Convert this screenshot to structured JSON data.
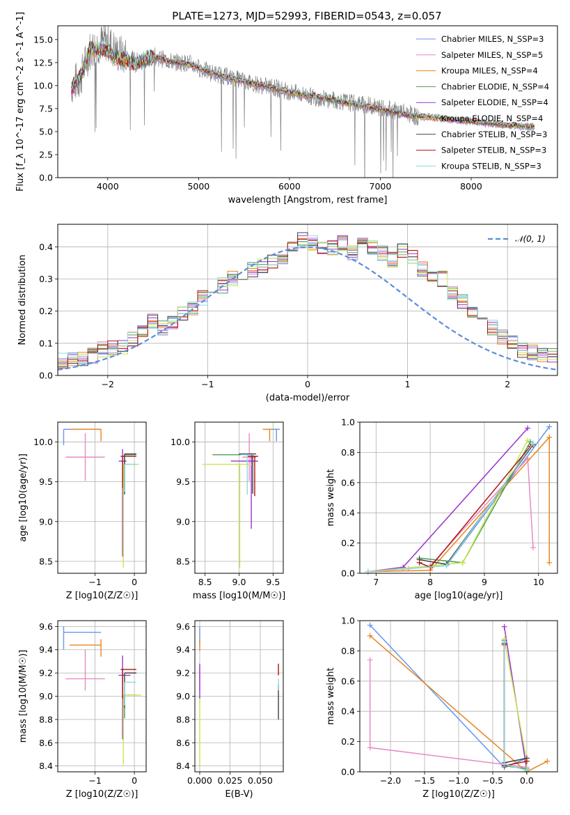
{
  "page_title": "PLATE=1273, MJD=52993, FIBERID=0543, z=0.057",
  "chart_data": [
    {
      "id": "spectrum",
      "type": "line",
      "title": "PLATE=1273, MJD=52993, FIBERID=0543, z=0.057",
      "xlabel": "wavelength [Angstrom, rest frame]",
      "ylabel": "Flux [f_λ 10^-17 erg cm^-2 s^-1 A^-1]",
      "xlim": [
        3450,
        8950
      ],
      "ylim": [
        0,
        16.5
      ],
      "xticks": [
        4000,
        5000,
        6000,
        7000,
        8000
      ],
      "yticks": [
        0.0,
        2.5,
        5.0,
        7.5,
        10.0,
        12.5,
        15.0
      ],
      "grid": false,
      "legend_position": "top-right",
      "data_spectrum": {
        "color": "#808080",
        "x": [
          3600,
          3700,
          3800,
          3900,
          4000,
          4100,
          4200,
          4300,
          4400,
          4500,
          4700,
          4900,
          5100,
          5300,
          5500,
          5700,
          5900,
          6100,
          6300,
          6500,
          6700,
          6900,
          7100,
          7300,
          7420
        ],
        "y": [
          10.0,
          10.8,
          13.8,
          14.5,
          14.8,
          13.5,
          13.2,
          12.7,
          12.8,
          13.2,
          12.6,
          12.4,
          11.5,
          11.0,
          10.5,
          10.0,
          9.6,
          9.1,
          8.7,
          8.4,
          8.1,
          7.8,
          7.4,
          7.0,
          6.5
        ]
      },
      "series": [
        {
          "name": "Chabrier MILES, N_SSP=3",
          "color": "#6495ED"
        },
        {
          "name": "Salpeter MILES, N_SSP=5",
          "color": "#E78AC3"
        },
        {
          "name": "Kroupa MILES, N_SSP=4",
          "color": "#E6851E"
        },
        {
          "name": "Chabrier ELODIE, N_SSP=4",
          "color": "#4C9A5A"
        },
        {
          "name": "Salpeter ELODIE, N_SSP=4",
          "color": "#9932CC"
        },
        {
          "name": "Kroupa ELODIE, N_SSP=4",
          "color": "#C8E64B"
        },
        {
          "name": "Chabrier STELIB, N_SSP=3",
          "color": "#404040"
        },
        {
          "name": "Salpeter STELIB, N_SSP=3",
          "color": "#B01010"
        },
        {
          "name": "Kroupa STELIB, N_SSP=3",
          "color": "#8FD8D8"
        }
      ],
      "model_x": [
        3600,
        3700,
        3800,
        3900,
        4000,
        4100,
        4200,
        4300,
        4400,
        4500,
        4700,
        4900,
        5100,
        5300,
        5500,
        5700,
        5900,
        6100,
        6300,
        6500,
        6700,
        6900,
        7100,
        7300,
        7500,
        7700,
        7900,
        8100,
        8300,
        8500,
        8700
      ],
      "model_y": [
        9.6,
        10.9,
        13.9,
        14.0,
        13.8,
        13.0,
        12.7,
        12.3,
        12.8,
        13.1,
        12.6,
        12.3,
        11.5,
        10.9,
        10.4,
        10.0,
        9.5,
        9.1,
        8.8,
        8.4,
        8.0,
        7.6,
        7.2,
        6.8,
        6.6,
        6.4,
        6.2,
        6.0,
        5.8,
        5.6,
        5.5
      ]
    },
    {
      "id": "residuals",
      "type": "step",
      "xlabel": "(data-model)/error",
      "ylabel": "Normed distribution",
      "xlim": [
        -2.5,
        2.5
      ],
      "ylim": [
        0,
        0.47
      ],
      "xticks": [
        -2,
        -1,
        0,
        1,
        2
      ],
      "yticks": [
        0.0,
        0.1,
        0.2,
        0.3,
        0.4
      ],
      "grid": true,
      "legend_position": "top-right",
      "normal_label": "𝒩(0, 1)",
      "normal_color": "#5B8BD9",
      "bin_width": 0.1,
      "bin_start": -2.5,
      "hist_base": [
        0.045,
        0.05,
        0.052,
        0.06,
        0.08,
        0.085,
        0.09,
        0.11,
        0.14,
        0.17,
        0.15,
        0.16,
        0.19,
        0.21,
        0.24,
        0.26,
        0.28,
        0.3,
        0.31,
        0.33,
        0.34,
        0.35,
        0.37,
        0.4,
        0.42,
        0.41,
        0.39,
        0.4,
        0.41,
        0.38,
        0.41,
        0.4,
        0.38,
        0.36,
        0.39,
        0.37,
        0.33,
        0.31,
        0.3,
        0.26,
        0.23,
        0.19,
        0.17,
        0.15,
        0.12,
        0.1,
        0.08,
        0.07,
        0.065,
        0.06
      ]
    },
    {
      "id": "age-vs-Z",
      "type": "errorbar",
      "xlabel": "Z [log10(Z/Z☉)]",
      "ylabel": "age  [log10(age/yr)]",
      "xlim": [
        -1.95,
        0.3
      ],
      "ylim": [
        8.35,
        10.25
      ],
      "xticks": [
        -1,
        0
      ],
      "yticks": [
        8.5,
        9.0,
        9.5,
        10.0
      ],
      "grid": true,
      "points": [
        {
          "color": "#6495ED",
          "x": -1.8,
          "y": 10.16,
          "xerr": [
            0,
            0.95
          ],
          "yerr": [
            0.2,
            0
          ]
        },
        {
          "color": "#E6851E",
          "x": -0.85,
          "y": 10.16,
          "xerr": [
            0.8,
            0
          ],
          "yerr": [
            0.15,
            0
          ]
        },
        {
          "color": "#E78AC3",
          "x": -1.25,
          "y": 9.81,
          "xerr": [
            0.5,
            0.5
          ],
          "yerr": [
            0.3,
            0.3
          ]
        },
        {
          "color": "#4C9A5A",
          "x": -0.25,
          "y": 9.84,
          "xerr": [
            0,
            0.3
          ],
          "yerr": [
            0.5,
            0
          ]
        },
        {
          "color": "#9932CC",
          "x": -0.3,
          "y": 9.76,
          "xerr": [
            0.1,
            0.1
          ],
          "yerr": [
            1.2,
            0.15
          ]
        },
        {
          "color": "#C8E64B",
          "x": -0.28,
          "y": 9.72,
          "xerr": [
            0,
            0.4
          ],
          "yerr": [
            1.3,
            0
          ]
        },
        {
          "color": "#404040",
          "x": -0.25,
          "y": 9.85,
          "xerr": [
            0,
            0.3
          ],
          "yerr": [
            0.5,
            0
          ]
        },
        {
          "color": "#B01010",
          "x": -0.3,
          "y": 9.82,
          "xerr": [
            0.05,
            0.35
          ],
          "yerr": [
            0.4,
            0
          ]
        },
        {
          "color": "#8FD8D8",
          "x": -0.25,
          "y": 9.72,
          "xerr": [
            0,
            0.3
          ],
          "yerr": [
            0.35,
            0
          ]
        }
      ]
    },
    {
      "id": "age-vs-mass",
      "type": "errorbar",
      "xlabel": "mass [log10(M/M☉)]",
      "ylabel": "",
      "xlim": [
        8.35,
        9.65
      ],
      "ylim": [
        8.35,
        10.25
      ],
      "xticks": [
        8.5,
        9.0,
        9.5
      ],
      "yticks": [
        8.5,
        9.0,
        9.5,
        10.0
      ],
      "grid": true,
      "points": [
        {
          "color": "#6495ED",
          "x": 9.55,
          "y": 10.16,
          "xerr": [
            0.1,
            0.05
          ],
          "yerr": [
            0.15,
            0
          ]
        },
        {
          "color": "#E6851E",
          "x": 9.45,
          "y": 10.16,
          "xerr": [
            0.1,
            0.05
          ],
          "yerr": [
            0.15,
            0
          ]
        },
        {
          "color": "#E78AC3",
          "x": 9.15,
          "y": 9.81,
          "xerr": [
            0.1,
            0.1
          ],
          "yerr": [
            0.3,
            0.3
          ]
        },
        {
          "color": "#4C9A5A",
          "x": 9.01,
          "y": 9.84,
          "xerr": [
            0.4,
            0.2
          ],
          "yerr": [
            0,
            0
          ]
        },
        {
          "color": "#9932CC",
          "x": 9.18,
          "y": 9.76,
          "xerr": [
            0.3,
            0.1
          ],
          "yerr": [
            0.85,
            0.1
          ]
        },
        {
          "color": "#C8E64B",
          "x": 9.01,
          "y": 9.72,
          "xerr": [
            0.55,
            0.2
          ],
          "yerr": [
            1.3,
            0
          ]
        },
        {
          "color": "#404040",
          "x": 9.2,
          "y": 9.85,
          "xerr": [
            0.2,
            0.05
          ],
          "yerr": [
            0.5,
            0
          ]
        },
        {
          "color": "#B01010",
          "x": 9.23,
          "y": 9.82,
          "xerr": [
            0.1,
            0.05
          ],
          "yerr": [
            0.5,
            0
          ]
        },
        {
          "color": "#8FD8D8",
          "x": 9.12,
          "y": 9.84,
          "xerr": [
            0.1,
            0.1
          ],
          "yerr": [
            0.5,
            0
          ]
        }
      ]
    },
    {
      "id": "massweight-vs-age",
      "type": "line",
      "xlabel": "age  [log10(age/yr)]",
      "ylabel": "mass weight",
      "xlim": [
        6.7,
        10.35
      ],
      "ylim": [
        0,
        1.0
      ],
      "xticks": [
        7,
        8,
        9,
        10
      ],
      "yticks": [
        0.0,
        0.2,
        0.4,
        0.6,
        0.8,
        1.0
      ],
      "grid": true,
      "series": [
        {
          "color": "#6495ED",
          "x": [
            6.85,
            8.3,
            10.2
          ],
          "y": [
            0.01,
            0.05,
            0.97
          ]
        },
        {
          "color": "#E78AC3",
          "x": [
            6.85,
            7.6,
            8.0,
            9.8,
            9.9
          ],
          "y": [
            0.01,
            0.03,
            0.05,
            0.76,
            0.17
          ]
        },
        {
          "color": "#E6851E",
          "x": [
            6.85,
            8.0,
            10.2,
            10.2
          ],
          "y": [
            0.01,
            0.02,
            0.9,
            0.07
          ]
        },
        {
          "color": "#4C9A5A",
          "x": [
            7.8,
            8.6,
            9.85
          ],
          "y": [
            0.1,
            0.07,
            0.87
          ]
        },
        {
          "color": "#9932CC",
          "x": [
            6.85,
            7.5,
            9.8
          ],
          "y": [
            0.01,
            0.04,
            0.96
          ]
        },
        {
          "color": "#C8E64B",
          "x": [
            6.85,
            8.6,
            9.8
          ],
          "y": [
            0.01,
            0.07,
            0.88
          ]
        },
        {
          "color": "#404040",
          "x": [
            7.8,
            8.3,
            9.9
          ],
          "y": [
            0.09,
            0.06,
            0.85
          ]
        },
        {
          "color": "#B01010",
          "x": [
            7.8,
            8.0,
            9.85
          ],
          "y": [
            0.07,
            0.04,
            0.84
          ]
        },
        {
          "color": "#8FD8D8",
          "x": [
            6.85,
            8.3,
            9.9
          ],
          "y": [
            0.01,
            0.05,
            0.86
          ]
        }
      ]
    },
    {
      "id": "mass-vs-Z",
      "type": "errorbar",
      "xlabel": "Z [log10(Z/Z☉)]",
      "ylabel": "mass [log10(M/M☉)]",
      "xlim": [
        -1.95,
        0.3
      ],
      "ylim": [
        8.35,
        9.65
      ],
      "xticks": [
        -1,
        0
      ],
      "yticks": [
        8.4,
        8.6,
        8.8,
        9.0,
        9.2,
        9.4,
        9.6
      ],
      "grid": true,
      "points": [
        {
          "color": "#6495ED",
          "x": -1.8,
          "y": 9.55,
          "xerr": [
            0,
            0.95
          ],
          "yerr": [
            0.15,
            0.05
          ]
        },
        {
          "color": "#E6851E",
          "x": -0.85,
          "y": 9.44,
          "xerr": [
            0.8,
            0
          ],
          "yerr": [
            0.1,
            0.05
          ]
        },
        {
          "color": "#E78AC3",
          "x": -1.25,
          "y": 9.15,
          "xerr": [
            0.5,
            0.5
          ],
          "yerr": [
            0.1,
            0.25
          ]
        },
        {
          "color": "#4C9A5A",
          "x": -0.25,
          "y": 9.01,
          "xerr": [
            0,
            0.3
          ],
          "yerr": [
            0.2,
            0
          ]
        },
        {
          "color": "#9932CC",
          "x": -0.3,
          "y": 9.18,
          "xerr": [
            0.1,
            0.2
          ],
          "yerr": [
            0.55,
            0.17
          ]
        },
        {
          "color": "#C8E64B",
          "x": -0.28,
          "y": 9.01,
          "xerr": [
            0,
            0.45
          ],
          "yerr": [
            0.6,
            0
          ]
        },
        {
          "color": "#404040",
          "x": -0.25,
          "y": 9.2,
          "xerr": [
            0,
            0.3
          ],
          "yerr": [
            0.3,
            0
          ]
        },
        {
          "color": "#B01010",
          "x": -0.3,
          "y": 9.23,
          "xerr": [
            0.05,
            0.35
          ],
          "yerr": [
            0.25,
            0
          ]
        },
        {
          "color": "#8FD8D8",
          "x": -0.25,
          "y": 9.12,
          "xerr": [
            0,
            0.3
          ],
          "yerr": [
            0.2,
            0
          ]
        }
      ]
    },
    {
      "id": "mass-vs-ebv",
      "type": "errorbar",
      "xlabel": "E(B-V)",
      "ylabel": "",
      "xlim": [
        -0.004,
        0.069
      ],
      "ylim": [
        8.35,
        9.65
      ],
      "xticks": [
        0.0,
        0.025,
        0.05
      ],
      "xticklabels": [
        "0.000",
        "0.025",
        "0.050"
      ],
      "yticks": [
        8.4,
        8.6,
        8.8,
        9.0,
        9.2,
        9.4,
        9.6
      ],
      "grid": true,
      "points": [
        {
          "color": "#6495ED",
          "x": 0.0,
          "y": 9.55,
          "xerr": [
            0,
            0
          ],
          "yerr": [
            0.1,
            0.05
          ]
        },
        {
          "color": "#E6851E",
          "x": 0.0,
          "y": 9.44,
          "xerr": [
            0,
            0
          ],
          "yerr": [
            0.05,
            0.05
          ]
        },
        {
          "color": "#E78AC3",
          "x": 0.0,
          "y": 9.15,
          "xerr": [
            0,
            0
          ],
          "yerr": [
            0.1,
            0.1
          ]
        },
        {
          "color": "#C8E64B",
          "x": 0.0,
          "y": 9.0,
          "xerr": [
            0,
            0
          ],
          "yerr": [
            0.6,
            0
          ]
        },
        {
          "color": "#9932CC",
          "x": 0.0,
          "y": 9.18,
          "xerr": [
            0,
            0
          ],
          "yerr": [
            0.2,
            0.1
          ]
        },
        {
          "color": "#B01010",
          "x": 0.065,
          "y": 9.23,
          "xerr": [
            0,
            0
          ],
          "yerr": [
            0.05,
            0.05
          ]
        },
        {
          "color": "#404040",
          "x": 0.065,
          "y": 9.0,
          "xerr": [
            0,
            0
          ],
          "yerr": [
            0.2,
            0.1
          ]
        },
        {
          "color": "#8FD8D8",
          "x": 0.065,
          "y": 9.1,
          "xerr": [
            0,
            0
          ],
          "yerr": [
            0.05,
            0.05
          ]
        }
      ]
    },
    {
      "id": "massweight-vs-Z",
      "type": "line",
      "xlabel": "Z [log10(Z/Z☉)]",
      "ylabel": "mass weight",
      "xlim": [
        -2.45,
        0.45
      ],
      "ylim": [
        0,
        1.0
      ],
      "xticks": [
        -2.0,
        -1.5,
        -1.0,
        -0.5,
        0.0
      ],
      "xticklabels": [
        "−2.0",
        "−1.5",
        "−1.0",
        "−0.5",
        "0.0"
      ],
      "yticks": [
        0.0,
        0.2,
        0.4,
        0.6,
        0.8,
        1.0
      ],
      "grid": true,
      "series": [
        {
          "color": "#6495ED",
          "x": [
            -2.3,
            -0.33,
            0.0
          ],
          "y": [
            0.97,
            0.03,
            0.09
          ]
        },
        {
          "color": "#E6851E",
          "x": [
            -2.3,
            0.0,
            0.3
          ],
          "y": [
            0.9,
            0.0,
            0.07
          ]
        },
        {
          "color": "#E78AC3",
          "x": [
            -2.3,
            -2.3,
            0.0
          ],
          "y": [
            0.74,
            0.16,
            0.03
          ]
        },
        {
          "color": "#4C9A5A",
          "x": [
            -0.33,
            -0.33,
            0.0
          ],
          "y": [
            0.87,
            0.04,
            0.02
          ]
        },
        {
          "color": "#9932CC",
          "x": [
            -0.33,
            0.0
          ],
          "y": [
            0.96,
            0.01
          ]
        },
        {
          "color": "#C8E64B",
          "x": [
            -0.33,
            0.0,
            0.0
          ],
          "y": [
            0.88,
            0.07,
            0.01
          ]
        },
        {
          "color": "#404040",
          "x": [
            -0.33,
            -0.33,
            0.0
          ],
          "y": [
            0.85,
            0.06,
            0.09
          ]
        },
        {
          "color": "#B01010",
          "x": [
            -0.33,
            -0.33,
            0.0
          ],
          "y": [
            0.84,
            0.04,
            0.07
          ]
        },
        {
          "color": "#8FD8D8",
          "x": [
            -0.33,
            -0.33,
            0.0
          ],
          "y": [
            0.86,
            0.05,
            0.01
          ]
        }
      ]
    }
  ]
}
